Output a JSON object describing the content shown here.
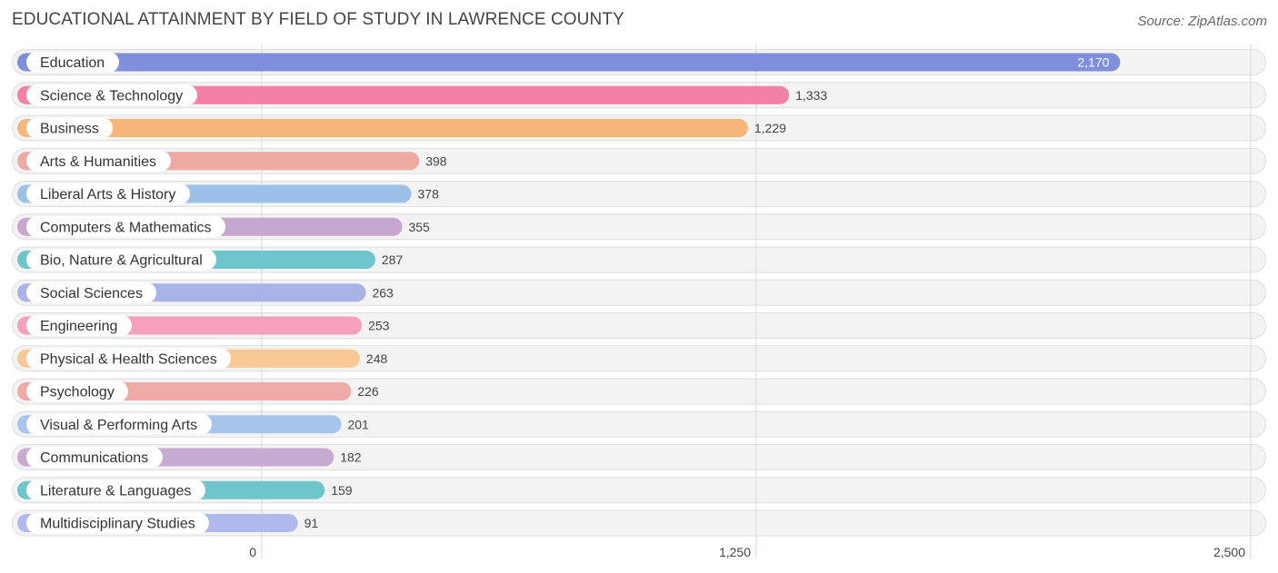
{
  "chart_title": "EDUCATIONAL ATTAINMENT BY FIELD OF STUDY IN LAWRENCE COUNTY",
  "source": "Source: ZipAtlas.com",
  "chart_data": {
    "type": "bar",
    "orientation": "horizontal",
    "title": "EDUCATIONAL ATTAINMENT BY FIELD OF STUDY IN LAWRENCE COUNTY",
    "xlabel": "",
    "ylabel": "",
    "xlim": [
      0,
      2500
    ],
    "grid": true,
    "ticks": [
      {
        "value": 0,
        "label": "0"
      },
      {
        "value": 1250,
        "label": "1,250"
      },
      {
        "value": 2500,
        "label": "2,500"
      }
    ],
    "categories": [
      "Education",
      "Science & Technology",
      "Business",
      "Arts & Humanities",
      "Liberal Arts & History",
      "Computers & Mathematics",
      "Bio, Nature & Agricultural",
      "Social Sciences",
      "Engineering",
      "Physical & Health Sciences",
      "Psychology",
      "Visual & Performing Arts",
      "Communications",
      "Literature & Languages",
      "Multidisciplinary Studies"
    ],
    "values": [
      2170,
      1333,
      1229,
      398,
      378,
      355,
      287,
      263,
      253,
      248,
      226,
      201,
      182,
      159,
      91
    ],
    "value_labels": [
      "2,170",
      "1,333",
      "1,229",
      "398",
      "378",
      "355",
      "287",
      "263",
      "253",
      "248",
      "226",
      "201",
      "182",
      "159",
      "91"
    ],
    "colors": [
      "#7f8fdc",
      "#f47fa7",
      "#f7b679",
      "#eea9a3",
      "#9dc0e8",
      "#c7a6cf",
      "#6fc5cd",
      "#aab3e8",
      "#f6a0bd",
      "#f8c895",
      "#efaaa5",
      "#a7c4ec",
      "#c8abd3",
      "#6ec6cb",
      "#b1b9ec"
    ]
  }
}
